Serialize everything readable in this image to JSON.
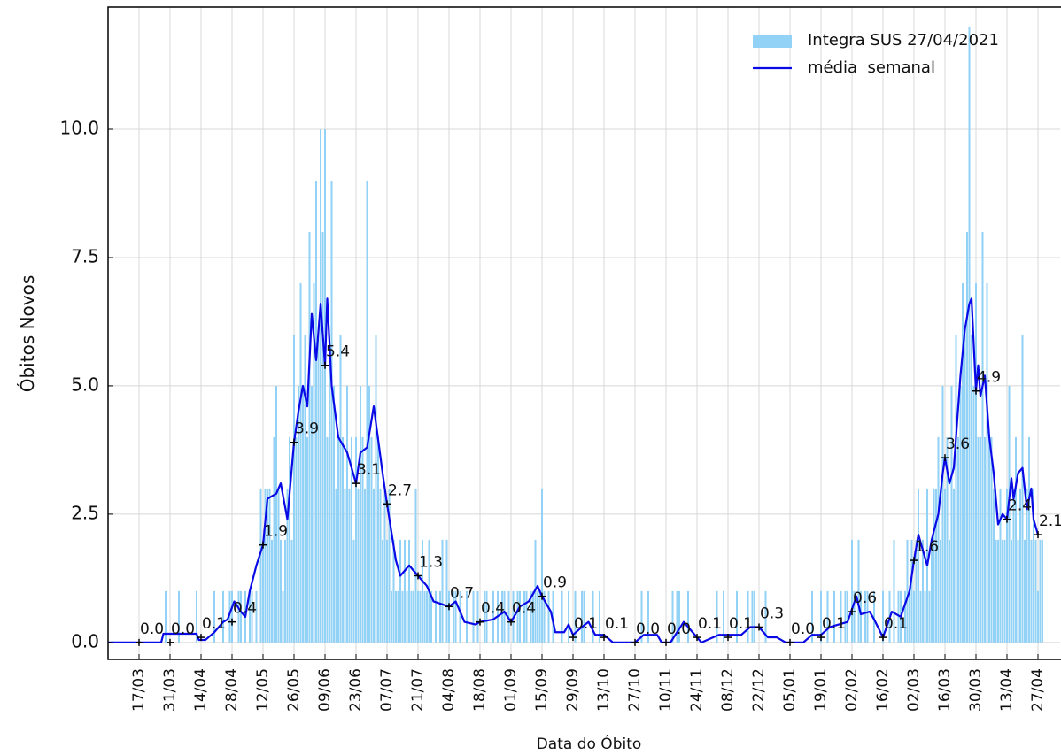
{
  "chart_data": {
    "type": "bar",
    "xlabel": "Data do Óbito",
    "ylabel": "Óbitos Novos",
    "xlim": [
      -14,
      416
    ],
    "ylim": [
      -0.33,
      12.38
    ],
    "xticks": [
      {
        "value": 0,
        "label": "17/03"
      },
      {
        "value": 14,
        "label": "31/03"
      },
      {
        "value": 28,
        "label": "14/04"
      },
      {
        "value": 42,
        "label": "28/04"
      },
      {
        "value": 56,
        "label": "12/05"
      },
      {
        "value": 70,
        "label": "26/05"
      },
      {
        "value": 84,
        "label": "09/06"
      },
      {
        "value": 98,
        "label": "23/06"
      },
      {
        "value": 112,
        "label": "07/07"
      },
      {
        "value": 126,
        "label": "21/07"
      },
      {
        "value": 140,
        "label": "04/08"
      },
      {
        "value": 154,
        "label": "18/08"
      },
      {
        "value": 168,
        "label": "01/09"
      },
      {
        "value": 182,
        "label": "15/09"
      },
      {
        "value": 196,
        "label": "29/09"
      },
      {
        "value": 210,
        "label": "13/10"
      },
      {
        "value": 224,
        "label": "27/10"
      },
      {
        "value": 238,
        "label": "10/11"
      },
      {
        "value": 252,
        "label": "24/11"
      },
      {
        "value": 266,
        "label": "08/12"
      },
      {
        "value": 280,
        "label": "22/12"
      },
      {
        "value": 294,
        "label": "05/01"
      },
      {
        "value": 308,
        "label": "19/01"
      },
      {
        "value": 322,
        "label": "02/02"
      },
      {
        "value": 336,
        "label": "16/02"
      },
      {
        "value": 350,
        "label": "02/03"
      },
      {
        "value": 364,
        "label": "16/03"
      },
      {
        "value": 378,
        "label": "30/03"
      },
      {
        "value": 392,
        "label": "13/04"
      },
      {
        "value": 406,
        "label": "27/04"
      }
    ],
    "yticks": [
      {
        "value": 0,
        "label": "0.0"
      },
      2.5,
      {
        "value": 5,
        "label": "5.0"
      },
      7.5,
      {
        "value": 10,
        "label": "10.0"
      }
    ],
    "grid": true,
    "legend": "upper right",
    "series": [
      {
        "name": "Integra SUS 27/04/2021",
        "type": "bar",
        "color": "#92d2f6",
        "x": [
          10,
          11,
          12,
          13,
          14,
          15,
          16,
          17,
          18,
          19,
          20,
          21,
          22,
          23,
          24,
          25,
          26,
          27,
          28,
          29,
          30,
          31,
          32,
          33,
          34,
          35,
          36,
          37,
          38,
          39,
          40,
          41,
          42,
          43,
          44,
          45,
          46,
          47,
          48,
          49,
          50,
          51,
          52,
          53,
          54,
          55,
          56,
          57,
          58,
          59,
          60,
          61,
          62,
          63,
          64,
          65,
          66,
          67,
          68,
          69,
          70,
          71,
          72,
          73,
          74,
          75,
          76,
          77,
          78,
          79,
          80,
          81,
          82,
          83,
          84,
          85,
          86,
          87,
          88,
          89,
          90,
          91,
          92,
          93,
          94,
          95,
          96,
          97,
          98,
          99,
          100,
          101,
          102,
          103,
          104,
          105,
          106,
          107,
          108,
          109,
          110,
          111,
          112,
          113,
          114,
          115,
          116,
          117,
          118,
          119,
          120,
          121,
          122,
          123,
          124,
          125,
          126,
          127,
          128,
          129,
          130,
          131,
          132,
          133,
          134,
          135,
          136,
          137,
          138,
          139,
          140,
          141,
          142,
          143,
          144,
          145,
          146,
          147,
          148,
          149,
          150,
          151,
          152,
          153,
          154,
          155,
          156,
          157,
          158,
          159,
          160,
          161,
          162,
          163,
          164,
          165,
          166,
          167,
          168,
          169,
          170,
          171,
          172,
          173,
          174,
          175,
          176,
          177,
          178,
          179,
          180,
          181,
          182,
          183,
          184,
          185,
          186,
          187,
          188,
          189,
          190,
          191,
          192,
          193,
          194,
          195,
          196,
          197,
          198,
          199,
          200,
          201,
          202,
          203,
          204,
          205,
          206,
          207,
          208,
          209,
          210,
          211,
          212,
          213,
          214,
          215,
          216,
          217,
          218,
          219,
          220,
          221,
          222,
          223,
          224,
          225,
          226,
          227,
          228,
          229,
          230,
          231,
          232,
          233,
          234,
          235,
          236,
          237,
          238,
          239,
          240,
          241,
          242,
          243,
          244,
          245,
          246,
          247,
          248,
          249,
          250,
          251,
          252,
          253,
          254,
          255,
          256,
          257,
          258,
          259,
          260,
          261,
          262,
          263,
          264,
          265,
          266,
          267,
          268,
          269,
          270,
          271,
          272,
          273,
          274,
          275,
          276,
          277,
          278,
          279,
          280,
          281,
          282,
          283,
          284,
          285,
          286,
          287,
          288,
          289,
          290,
          291,
          292,
          293,
          294,
          295,
          296,
          297,
          298,
          299,
          300,
          301,
          302,
          303,
          304,
          305,
          306,
          307,
          308,
          309,
          310,
          311,
          312,
          313,
          314,
          315,
          316,
          317,
          318,
          319,
          320,
          321,
          322,
          323,
          324,
          325,
          326,
          327,
          328,
          329,
          330,
          331,
          332,
          333,
          334,
          335,
          336,
          337,
          338,
          339,
          340,
          341,
          342,
          343,
          344,
          345,
          346,
          347,
          348,
          349,
          350,
          351,
          352,
          353,
          354,
          355,
          356,
          357,
          358,
          359,
          360,
          361,
          362,
          363,
          364,
          365,
          366,
          367,
          368,
          369,
          370,
          371,
          372,
          373,
          374,
          375,
          376,
          377,
          378,
          379,
          380,
          381,
          382,
          383,
          384,
          385,
          386,
          387,
          388,
          389,
          390,
          391,
          392,
          393,
          394,
          395,
          396,
          397,
          398,
          399,
          400,
          401,
          402,
          403,
          404,
          405,
          406,
          407,
          408
        ],
        "values": [
          0,
          0,
          1,
          0,
          0,
          0,
          0,
          0,
          1,
          0,
          0,
          0,
          0,
          0,
          0,
          0,
          1,
          0,
          0,
          0,
          0,
          0,
          0,
          0,
          1,
          0,
          0,
          0,
          1,
          0,
          0,
          1,
          1,
          0,
          0,
          1,
          1,
          0,
          1,
          0,
          1,
          1,
          0,
          1,
          0,
          3,
          2,
          3,
          3,
          3,
          2,
          4,
          5,
          3,
          2,
          1,
          2,
          3,
          4,
          2,
          6,
          4,
          5,
          7,
          5,
          6,
          4,
          8,
          5,
          7,
          9,
          6,
          10,
          8,
          10,
          4,
          6,
          9,
          5,
          3,
          4,
          6,
          4,
          3,
          5,
          3,
          4,
          2,
          4,
          3,
          5,
          4,
          3,
          9,
          5,
          4,
          3,
          6,
          4,
          3,
          2,
          3,
          2,
          3,
          1,
          2,
          1,
          1,
          2,
          1,
          2,
          1,
          2,
          1,
          1,
          3,
          1,
          1,
          2,
          1,
          1,
          2,
          1,
          0,
          1,
          0,
          1,
          2,
          0,
          2,
          1,
          0,
          1,
          1,
          0,
          1,
          0,
          0,
          1,
          0,
          0,
          1,
          0,
          1,
          0,
          0,
          1,
          1,
          0,
          0,
          1,
          0,
          1,
          0,
          1,
          1,
          0,
          1,
          0,
          1,
          0,
          1,
          1,
          0,
          1,
          1,
          0,
          1,
          1,
          2,
          1,
          1,
          3,
          1,
          0,
          1,
          0,
          1,
          0,
          0,
          0,
          1,
          0,
          0,
          1,
          0,
          0,
          1,
          0,
          0,
          1,
          1,
          0,
          0,
          0,
          1,
          0,
          0,
          1,
          0,
          0,
          0,
          0,
          0,
          0,
          0,
          0,
          0,
          0,
          0,
          0,
          0,
          0,
          0,
          0,
          0,
          0,
          1,
          0,
          0,
          1,
          0,
          0,
          0,
          0,
          0,
          0,
          0,
          0,
          0,
          0,
          1,
          0,
          1,
          1,
          0,
          0,
          0,
          1,
          0,
          0,
          0,
          0,
          0,
          0,
          0,
          0,
          0,
          0,
          0,
          0,
          1,
          0,
          0,
          1,
          0,
          0,
          0,
          0,
          0,
          1,
          0,
          0,
          0,
          0,
          1,
          0,
          1,
          1,
          0,
          0,
          0,
          0,
          1,
          0,
          0,
          0,
          0,
          0,
          0,
          0,
          0,
          0,
          0,
          0,
          0,
          0,
          0,
          0,
          0,
          0,
          0,
          0,
          0,
          1,
          0,
          0,
          0,
          1,
          0,
          0,
          1,
          0,
          0,
          1,
          0,
          0,
          1,
          0,
          1,
          1,
          0,
          2,
          1,
          0,
          2,
          1,
          0,
          1,
          1,
          0,
          0,
          1,
          0,
          0,
          0,
          1,
          0,
          0,
          1,
          0,
          2,
          0,
          1,
          1,
          0,
          1,
          2,
          1,
          2,
          1,
          2,
          3,
          1,
          2,
          1,
          3,
          1,
          2,
          3,
          3,
          4,
          2,
          5,
          3,
          4,
          2,
          5,
          3,
          6,
          4,
          5,
          7,
          6,
          8,
          12,
          6,
          5,
          7,
          4,
          4,
          8,
          4,
          7,
          4,
          4,
          3,
          2,
          2,
          3,
          2,
          2,
          3,
          5,
          2,
          3,
          4,
          2,
          3,
          6,
          2,
          3,
          4,
          2,
          3,
          2,
          1,
          2,
          2
        ]
      },
      {
        "name": "média  semanal",
        "type": "line",
        "color": "#0a0ae6",
        "x": [
          -14,
          10,
          11,
          26,
          27,
          30,
          34,
          38,
          40,
          43,
          46,
          48,
          50,
          53,
          56,
          58,
          62,
          64,
          67,
          70,
          72,
          74,
          76,
          78,
          80,
          82,
          84,
          85,
          87,
          90,
          94,
          98,
          100,
          103,
          106,
          110,
          112,
          116,
          118,
          122,
          126,
          130,
          133,
          140,
          143,
          147,
          152,
          154,
          160,
          165,
          168,
          172,
          176,
          180,
          182,
          186,
          188,
          192,
          194,
          196,
          200,
          203,
          206,
          210,
          214,
          224,
          228,
          234,
          236,
          240,
          246,
          250,
          252,
          254,
          262,
          266,
          272,
          276,
          280,
          284,
          288,
          292,
          300,
          304,
          308,
          312,
          316,
          320,
          324,
          326,
          330,
          332,
          336,
          340,
          344,
          348,
          350,
          352,
          356,
          358,
          361,
          363,
          364,
          366,
          368,
          371,
          373,
          375,
          376,
          378,
          379,
          380,
          382,
          384,
          386,
          388,
          390,
          392,
          394,
          395,
          397,
          399,
          401,
          403,
          404,
          406
        ],
        "values": [
          0,
          0,
          0.17,
          0.17,
          0.05,
          0.05,
          0.2,
          0.4,
          0.45,
          0.8,
          0.6,
          0.5,
          1.0,
          1.5,
          1.9,
          2.8,
          2.9,
          3.1,
          2.4,
          3.9,
          4.5,
          5.0,
          4.6,
          6.4,
          5.5,
          6.6,
          5.4,
          6.7,
          5.0,
          4.0,
          3.7,
          3.1,
          3.7,
          3.8,
          4.6,
          3.3,
          2.7,
          1.6,
          1.3,
          1.5,
          1.3,
          1.1,
          0.8,
          0.7,
          0.8,
          0.4,
          0.35,
          0.4,
          0.45,
          0.6,
          0.4,
          0.7,
          0.8,
          1.1,
          0.9,
          0.6,
          0.2,
          0.2,
          0.35,
          0.15,
          0.3,
          0.4,
          0.15,
          0.15,
          0,
          0,
          0.15,
          0.15,
          0,
          0,
          0.4,
          0.2,
          0.1,
          0,
          0.15,
          0.15,
          0.15,
          0.3,
          0.3,
          0.1,
          0.1,
          0,
          0,
          0.15,
          0.15,
          0.3,
          0.35,
          0.4,
          0.9,
          0.55,
          0.6,
          0.45,
          0.1,
          0.6,
          0.5,
          1.0,
          1.6,
          2.1,
          1.5,
          2.0,
          2.5,
          3.3,
          3.6,
          3.1,
          3.4,
          5.2,
          6.1,
          6.6,
          6.7,
          4.9,
          5.4,
          4.8,
          5.2,
          4.0,
          3.3,
          2.3,
          2.5,
          2.4,
          3.2,
          2.8,
          3.3,
          3.4,
          2.6,
          3.0,
          2.4,
          2.1
        ]
      }
    ],
    "annotations": {
      "x": [
        0,
        14,
        28,
        42,
        56,
        70,
        84,
        98,
        112,
        126,
        140,
        154,
        168,
        182,
        196,
        210,
        224,
        238,
        252,
        266,
        280,
        294,
        308,
        322,
        336,
        350,
        364,
        378,
        392,
        406
      ],
      "values": [
        0,
        0,
        0.1,
        0.4,
        1.9,
        3.9,
        5.4,
        3.1,
        2.7,
        1.3,
        0.7,
        0.4,
        0.4,
        0.9,
        0.1,
        0.1,
        0,
        0,
        0.1,
        0.1,
        0.3,
        0,
        0.1,
        0.6,
        0.1,
        1.6,
        3.6,
        4.9,
        2.4,
        2.1
      ],
      "value_labels": [
        "0.0",
        "0.0",
        "0.1",
        "0.4",
        "1.9",
        "3.9",
        "5.4",
        "3.1",
        "2.7",
        "1.3",
        "0.7",
        "0.4",
        "0.4",
        "0.9",
        "0.1",
        "0.1",
        "0.0",
        "0.0",
        "0.1",
        "0.1",
        "0.3",
        "0.0",
        "0.1",
        "0.6",
        "0.1",
        "1.6",
        "3.6",
        "4.9",
        "2.4",
        "2.1"
      ]
    }
  }
}
